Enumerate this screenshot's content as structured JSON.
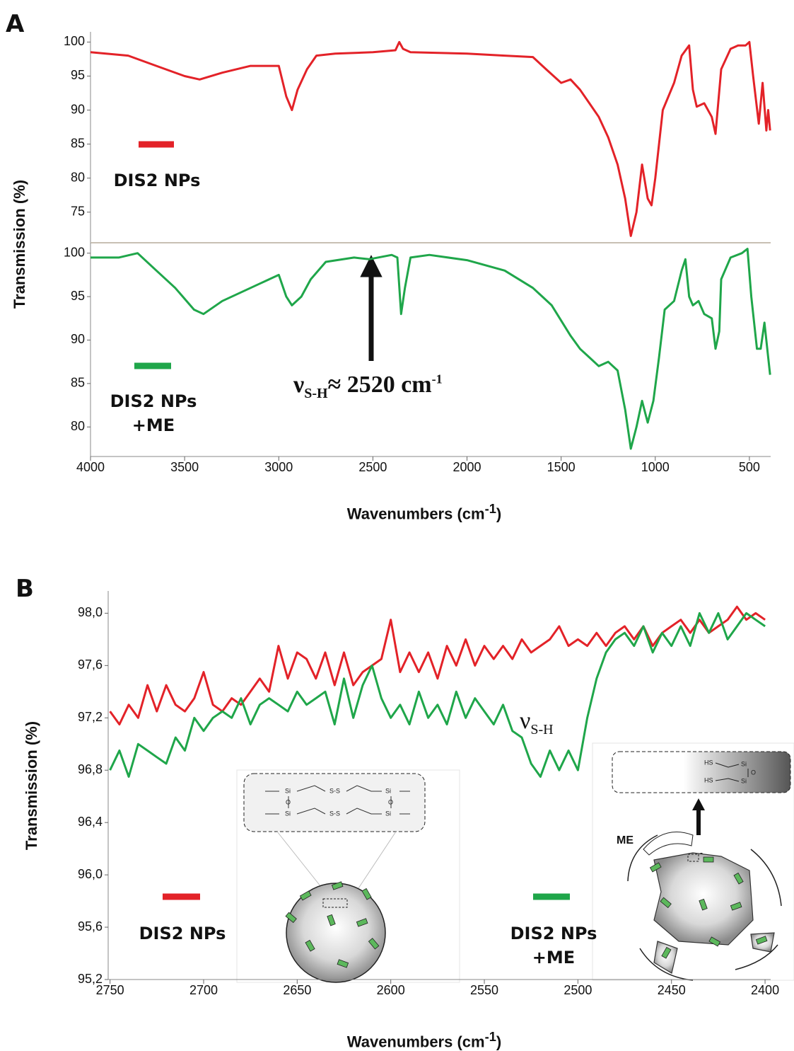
{
  "chart_data": [
    {
      "type": "line",
      "label": "A",
      "ylabel": "Transmission (%)",
      "xlim": [
        4000,
        387
      ],
      "ylim": [
        70.5,
        101.5
      ],
      "yticks": [
        75,
        80,
        85,
        90,
        95,
        100
      ],
      "x": [
        4000,
        3800,
        3650,
        3500,
        3420,
        3300,
        3150,
        3000,
        2960,
        2930,
        2900,
        2850,
        2800,
        2700,
        2500,
        2380,
        2360,
        2340,
        2300,
        2000,
        1800,
        1650,
        1580,
        1500,
        1450,
        1400,
        1350,
        1300,
        1250,
        1200,
        1160,
        1130,
        1100,
        1070,
        1040,
        1020,
        1000,
        960,
        900,
        860,
        820,
        800,
        780,
        740,
        700,
        680,
        650,
        600,
        560,
        520,
        500,
        480,
        450,
        430,
        410,
        400,
        390
      ],
      "series": [
        {
          "name": "DIS2 NPs",
          "color": "#e32228",
          "values": [
            98.5,
            98,
            96.5,
            95,
            94.5,
            95.5,
            96.5,
            96.5,
            92,
            90,
            93,
            96,
            98,
            98.3,
            98.5,
            98.8,
            100,
            99,
            98.5,
            98.3,
            98,
            97.8,
            96,
            94,
            94.5,
            93,
            91,
            89,
            86,
            82,
            77,
            71.5,
            75,
            82,
            77,
            76,
            80,
            90,
            94,
            98,
            99.5,
            93,
            90.5,
            91,
            89,
            86.5,
            96,
            99,
            99.5,
            99.5,
            100,
            95,
            88,
            94,
            87,
            90,
            87
          ]
        }
      ]
    },
    {
      "type": "line",
      "xlabel": {
        "text": "Wavenumbers (cm",
        "sup": "-1",
        "close": ")"
      },
      "annotation": {
        "nu": "ν",
        "sub": "S-H",
        "text": "≈ 2520 cm",
        "sup": "-1"
      },
      "xlim": [
        4000,
        387
      ],
      "ylim": [
        76.6,
        101.2
      ],
      "yticks": [
        80,
        85,
        90,
        95,
        100
      ],
      "xticks": [
        4000,
        3500,
        3000,
        2500,
        2000,
        1500,
        1000,
        500
      ],
      "x": [
        4000,
        3850,
        3750,
        3650,
        3550,
        3450,
        3400,
        3300,
        3100,
        3000,
        2960,
        2930,
        2880,
        2830,
        2750,
        2600,
        2520,
        2400,
        2370,
        2350,
        2330,
        2300,
        2200,
        2000,
        1800,
        1650,
        1550,
        1450,
        1400,
        1350,
        1300,
        1250,
        1200,
        1160,
        1130,
        1100,
        1070,
        1040,
        1010,
        980,
        950,
        900,
        860,
        840,
        820,
        800,
        770,
        740,
        700,
        680,
        660,
        650,
        600,
        540,
        510,
        490,
        460,
        440,
        420,
        400,
        390
      ],
      "series": [
        {
          "name": "DIS2 NPs\n+ME",
          "color": "#1fa64a",
          "values": [
            99.5,
            99.5,
            100,
            98,
            96,
            93.5,
            93,
            94.5,
            96.5,
            97.5,
            95,
            94,
            95,
            97,
            99,
            99.5,
            99.3,
            99.8,
            99.5,
            93,
            96,
            99.5,
            99.8,
            99.2,
            98,
            96,
            94,
            90.5,
            89,
            88,
            87,
            87.5,
            86.5,
            82,
            77.5,
            80,
            83,
            80.5,
            83,
            88,
            93.5,
            94.5,
            98,
            99.3,
            95,
            94,
            94.5,
            93,
            92.5,
            89,
            91,
            97,
            99.5,
            100,
            100.5,
            95,
            89,
            89,
            92,
            88,
            86
          ]
        }
      ]
    },
    {
      "type": "line",
      "label": "B",
      "ylabel": "Transmission (%)",
      "xlabel": {
        "text": "Wavenumbers (cm",
        "sup": "-1",
        "close": ")"
      },
      "annotation": {
        "nu": "ν",
        "sub": "S-H"
      },
      "xlim": [
        2751,
        2397
      ],
      "ylim": [
        95.2,
        98.17
      ],
      "xticks": [
        2750,
        2700,
        2650,
        2600,
        2550,
        2500,
        2450,
        2400
      ],
      "yticks": [
        {
          "value": 95.2,
          "label": "95,2"
        },
        {
          "value": 95.6,
          "label": "95,6"
        },
        {
          "value": 96.0,
          "label": "96,0"
        },
        {
          "value": 96.4,
          "label": "96,4"
        },
        {
          "value": 96.8,
          "label": "96,8"
        },
        {
          "value": 97.2,
          "label": "97,2"
        },
        {
          "value": 97.6,
          "label": "97,6"
        },
        {
          "value": 98.0,
          "label": "98,0"
        }
      ],
      "x": [
        2750,
        2745,
        2740,
        2735,
        2730,
        2725,
        2720,
        2715,
        2710,
        2705,
        2700,
        2695,
        2690,
        2685,
        2680,
        2675,
        2670,
        2665,
        2660,
        2655,
        2650,
        2645,
        2640,
        2635,
        2630,
        2625,
        2620,
        2615,
        2610,
        2605,
        2600,
        2595,
        2590,
        2585,
        2580,
        2575,
        2570,
        2565,
        2560,
        2555,
        2550,
        2545,
        2540,
        2535,
        2530,
        2525,
        2520,
        2515,
        2510,
        2505,
        2500,
        2495,
        2490,
        2485,
        2480,
        2475,
        2470,
        2465,
        2460,
        2455,
        2450,
        2445,
        2440,
        2435,
        2430,
        2425,
        2420,
        2415,
        2410,
        2405,
        2400
      ],
      "series": [
        {
          "name": "DIS2 NPs",
          "color": "#e32228",
          "values": [
            97.25,
            97.15,
            97.3,
            97.2,
            97.45,
            97.25,
            97.45,
            97.3,
            97.25,
            97.35,
            97.55,
            97.3,
            97.25,
            97.35,
            97.3,
            97.4,
            97.5,
            97.4,
            97.75,
            97.5,
            97.7,
            97.65,
            97.5,
            97.7,
            97.45,
            97.7,
            97.45,
            97.55,
            97.6,
            97.65,
            97.95,
            97.55,
            97.7,
            97.55,
            97.7,
            97.5,
            97.75,
            97.6,
            97.8,
            97.6,
            97.75,
            97.65,
            97.75,
            97.65,
            97.8,
            97.7,
            97.75,
            97.8,
            97.9,
            97.75,
            97.8,
            97.75,
            97.85,
            97.75,
            97.85,
            97.9,
            97.8,
            97.9,
            97.75,
            97.85,
            97.9,
            97.95,
            97.85,
            97.95,
            97.85,
            97.9,
            97.95,
            98.05,
            97.95,
            98.0,
            97.95
          ]
        },
        {
          "name": "DIS2 NPs\n+ME",
          "color": "#1fa64a",
          "values": [
            96.8,
            96.95,
            96.75,
            97.0,
            96.95,
            96.9,
            96.85,
            97.05,
            96.95,
            97.2,
            97.1,
            97.2,
            97.25,
            97.2,
            97.35,
            97.15,
            97.3,
            97.35,
            97.3,
            97.25,
            97.4,
            97.3,
            97.35,
            97.4,
            97.15,
            97.5,
            97.2,
            97.45,
            97.6,
            97.35,
            97.2,
            97.3,
            97.15,
            97.4,
            97.2,
            97.3,
            97.15,
            97.4,
            97.2,
            97.35,
            97.25,
            97.15,
            97.3,
            97.1,
            97.05,
            96.85,
            96.75,
            96.95,
            96.8,
            96.95,
            96.8,
            97.2,
            97.5,
            97.7,
            97.8,
            97.85,
            97.75,
            97.9,
            97.7,
            97.85,
            97.75,
            97.9,
            97.75,
            98.0,
            97.85,
            98.0,
            97.8,
            97.9,
            98.0,
            97.95,
            97.9
          ]
        }
      ]
    }
  ],
  "insets": {
    "left": {
      "si": "Si",
      "o": "O",
      "ss": "S-S"
    },
    "right": {
      "hs": "HS",
      "si": "Si",
      "o": "O",
      "me": "ME",
      "e": "e",
      "minus": "-"
    }
  }
}
